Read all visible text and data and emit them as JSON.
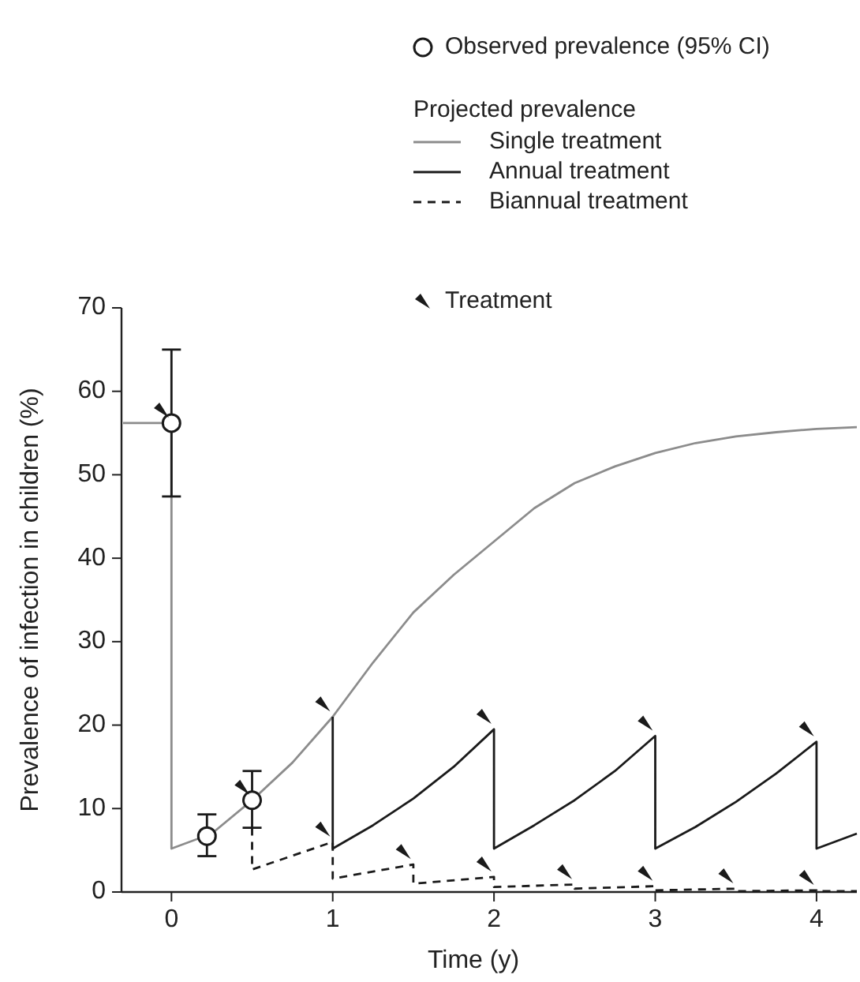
{
  "chart_data": {
    "type": "line",
    "xlabel": "Time (y)",
    "ylabel": "Prevalence of infection in children (%)",
    "legend_title": "Projected prevalence",
    "legend": "top right",
    "grid": false,
    "xlim": [
      -0.3,
      4.25
    ],
    "xticks": [
      0,
      1,
      2,
      3,
      4
    ],
    "ylim": [
      0,
      70
    ],
    "yticks": [
      0,
      10,
      20,
      30,
      40,
      50,
      60,
      70
    ],
    "series": [
      {
        "name": "Observed prevalence (95% CI)",
        "type": "scatter",
        "marker": "circle",
        "color": "#1a1a1a",
        "x": [
          0,
          0.22,
          0.5
        ],
        "values": [
          56.2,
          6.7,
          11
        ],
        "errors": [
          [
            47.4,
            65
          ],
          [
            4.3,
            9.3
          ],
          [
            7.7,
            14.5
          ]
        ]
      },
      {
        "name": "Single treatment",
        "type": "line",
        "marker": "none",
        "line_style": "solid",
        "color": "#8c8c8c",
        "x": [
          -0.3,
          0,
          0,
          0.25,
          0.5,
          0.75,
          1,
          1.25,
          1.5,
          1.75,
          2,
          2.25,
          2.5,
          2.75,
          3,
          3.25,
          3.5,
          3.75,
          4,
          4.25
        ],
        "values": [
          56.2,
          56.2,
          5.2,
          7,
          11,
          15.5,
          21,
          27.5,
          33.5,
          38,
          42,
          46,
          49,
          51,
          52.6,
          53.8,
          54.6,
          55.1,
          55.5,
          55.7
        ]
      },
      {
        "name": "Annual treatment",
        "type": "line",
        "marker": "none",
        "line_style": "solid",
        "color": "#1a1a1a",
        "x": [
          1,
          1,
          1.25,
          1.5,
          1.75,
          2,
          2,
          2.25,
          2.5,
          2.75,
          3,
          3,
          3.25,
          3.5,
          3.75,
          4,
          4,
          4.25
        ],
        "values": [
          21,
          5.2,
          8,
          11.2,
          15,
          19.5,
          5.2,
          8,
          11,
          14.5,
          18.7,
          5.2,
          7.8,
          10.8,
          14.2,
          18,
          5.2,
          7
        ]
      },
      {
        "name": "Biannual treatment",
        "type": "line",
        "marker": "none",
        "line_style": "dashed",
        "color": "#1a1a1a",
        "x": [
          0.5,
          0.5,
          1,
          1,
          1.5,
          1.5,
          2,
          2,
          2.5,
          2.5,
          3,
          3,
          3.5,
          3.5,
          4,
          4,
          4.25
        ],
        "values": [
          7.7,
          2.7,
          6,
          1.6,
          3.3,
          1,
          1.8,
          0.6,
          0.9,
          0.4,
          0.7,
          0.2,
          0.4,
          0.1,
          0.2,
          0.1,
          0.1
        ]
      },
      {
        "name": "Treatment",
        "type": "scatter",
        "marker": "triangle",
        "color": "#1a1a1a",
        "x": [
          -0.06,
          0.44,
          0.94,
          0.94,
          1.44,
          1.94,
          1.94,
          2.44,
          2.94,
          2.94,
          3.44,
          3.94,
          3.94
        ],
        "values": [
          57.7,
          12.5,
          22.5,
          7.5,
          4.8,
          21,
          3.3,
          2.4,
          20.2,
          2.2,
          1.9,
          19.5,
          1.7
        ]
      }
    ]
  }
}
